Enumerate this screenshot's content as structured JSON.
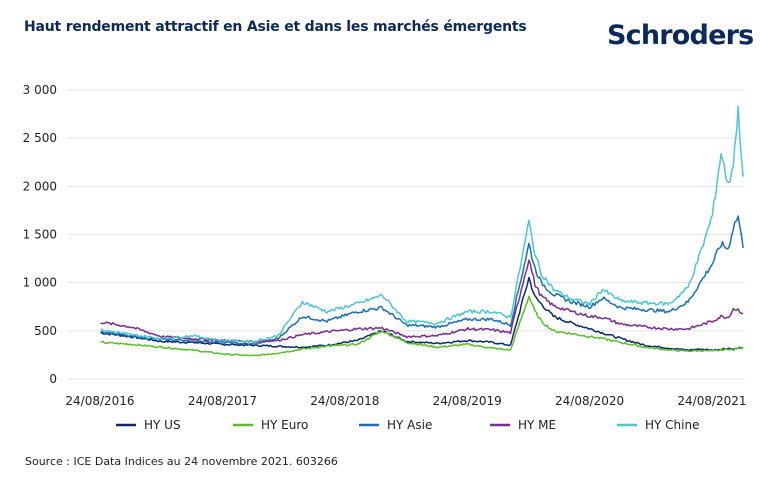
{
  "header": {
    "title": "Haut rendement attractif en Asie et dans les marchés émergents",
    "logo": "Schroders"
  },
  "footer": {
    "source": "Source : ICE Data Indices au 24 novembre 2021. 603266"
  },
  "chart_data": {
    "type": "line",
    "title": "Haut rendement attractif en Asie et dans les marchés émergents",
    "xlabel": "",
    "ylabel": "",
    "ylim": [
      0,
      3000
    ],
    "xlim": [
      2016.646,
      2021.9
    ],
    "grid": true,
    "legend_position": "bottom",
    "y_ticks": [
      {
        "value": 0,
        "label": "0"
      },
      {
        "value": 500,
        "label": "500"
      },
      {
        "value": 1000,
        "label": "1 000"
      },
      {
        "value": 1500,
        "label": "1 500"
      },
      {
        "value": 2000,
        "label": "2 000"
      },
      {
        "value": 2500,
        "label": "2 500"
      },
      {
        "value": 3000,
        "label": "3 000"
      }
    ],
    "x_ticks": [
      {
        "value": 2016.646,
        "label": "24/08/2016"
      },
      {
        "value": 2017.646,
        "label": "24/08/2017"
      },
      {
        "value": 2018.646,
        "label": "24/08/2018"
      },
      {
        "value": 2019.646,
        "label": "24/08/2019"
      },
      {
        "value": 2020.646,
        "label": "24/08/2020"
      },
      {
        "value": 2021.646,
        "label": "24/08/2021"
      }
    ],
    "x": [
      2016.65,
      2016.9,
      2017.15,
      2017.4,
      2017.65,
      2017.9,
      2018.1,
      2018.3,
      2018.5,
      2018.75,
      2018.95,
      2019.15,
      2019.4,
      2019.65,
      2019.85,
      2020.0,
      2020.15,
      2020.2,
      2020.25,
      2020.35,
      2020.5,
      2020.65,
      2020.75,
      2020.9,
      2021.1,
      2021.3,
      2021.45,
      2021.55,
      2021.65,
      2021.72,
      2021.78,
      2021.82,
      2021.86,
      2021.9
    ],
    "series": [
      {
        "name": "HY US",
        "color": "#0b2a6b",
        "values": [
          480,
          440,
          390,
          380,
          360,
          350,
          340,
          330,
          350,
          400,
          500,
          390,
          370,
          400,
          380,
          350,
          1050,
          850,
          780,
          650,
          580,
          520,
          480,
          420,
          350,
          320,
          300,
          310,
          300,
          310,
          320,
          310,
          320,
          330
        ]
      },
      {
        "name": "HY Euro",
        "color": "#5bbf2a",
        "values": [
          380,
          360,
          330,
          300,
          260,
          240,
          270,
          310,
          340,
          360,
          500,
          380,
          330,
          360,
          320,
          300,
          860,
          700,
          600,
          500,
          470,
          440,
          420,
          380,
          330,
          300,
          290,
          295,
          290,
          300,
          310,
          310,
          320,
          320
        ]
      },
      {
        "name": "HY Asie",
        "color": "#1a6fb5",
        "values": [
          500,
          440,
          410,
          400,
          380,
          360,
          420,
          650,
          600,
          700,
          740,
          560,
          540,
          620,
          620,
          560,
          1400,
          1150,
          1000,
          880,
          800,
          750,
          840,
          740,
          720,
          700,
          800,
          1000,
          1200,
          1400,
          1350,
          1580,
          1690,
          1360
        ]
      },
      {
        "name": "HY ME",
        "color": "#7a2e8f",
        "values": [
          590,
          540,
          440,
          420,
          400,
          390,
          400,
          460,
          490,
          520,
          530,
          440,
          450,
          520,
          510,
          480,
          1250,
          980,
          860,
          760,
          700,
          650,
          640,
          570,
          540,
          520,
          520,
          560,
          600,
          650,
          640,
          730,
          720,
          680
        ]
      },
      {
        "name": "HY Chine",
        "color": "#4ec5d4",
        "values": [
          510,
          460,
          420,
          450,
          400,
          390,
          450,
          800,
          700,
          780,
          870,
          600,
          580,
          700,
          700,
          640,
          1630,
          1300,
          1100,
          930,
          830,
          780,
          930,
          810,
          790,
          780,
          950,
          1300,
          1700,
          2350,
          2000,
          2250,
          2780,
          2100
        ]
      }
    ]
  }
}
